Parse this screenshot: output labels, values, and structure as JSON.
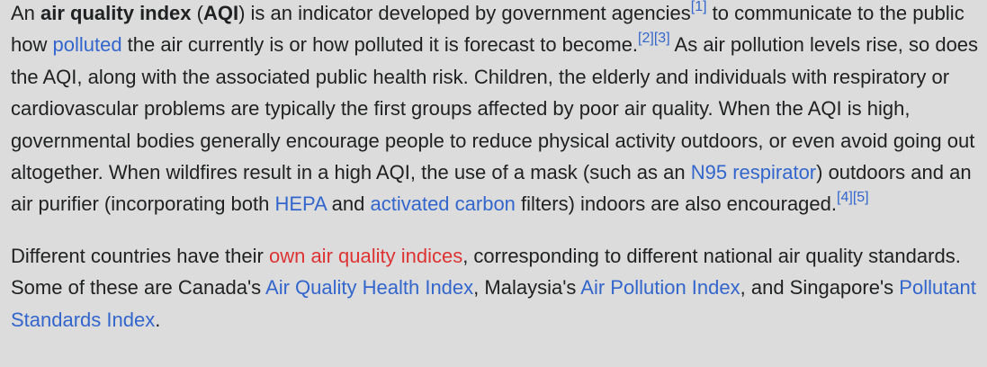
{
  "paragraph1": {
    "t_an": "An ",
    "term": "air quality index",
    "t_open": " (",
    "abbr": "AQI",
    "t_developed": ") is an indicator developed by government agencies",
    "ref1": "[1]",
    "t_comm": " to communicate to the public how ",
    "link_polluted": "polluted",
    "t_forecast": " the air currently is or how polluted it is forecast to become.",
    "ref2": "[2]",
    "ref3": "[3]",
    "t_rise": " As air pollution levels rise, so does the AQI, along with the associated public health risk. Children, the elderly and individuals with respiratory or cardiovascular problems are typically the first groups affected by poor air quality. When the AQI is high, governmental bodies generally encourage people to reduce physical activity outdoors, or even avoid going out altogether. When wildfires result in a high AQI, the use of a mask (such as an ",
    "link_n95": "N95 respirator",
    "t_outdoors": ") outdoors and an air purifier (incorporating both ",
    "link_hepa": "HEPA",
    "t_and": " and ",
    "link_carbon": "activated carbon",
    "t_filters": " filters) indoors are also encouraged.",
    "ref4": "[4]",
    "ref5": "[5]"
  },
  "paragraph2": {
    "t_diff": "Different countries have their ",
    "link_own": "own air quality indices",
    "t_corr": ", corresponding to different national air quality standards. Some of these are Canada's ",
    "link_aqhi": "Air Quality Health Index",
    "t_malaysia": ", Malaysia's ",
    "link_api": "Air Pollution Index",
    "t_singapore": ", and Singapore's ",
    "link_psi": "Pollutant Standards Index",
    "t_end": "."
  },
  "colors": {
    "background": "#dcdcdc",
    "text": "#202122",
    "link": "#3366cc",
    "redlink": "#dd3333"
  }
}
